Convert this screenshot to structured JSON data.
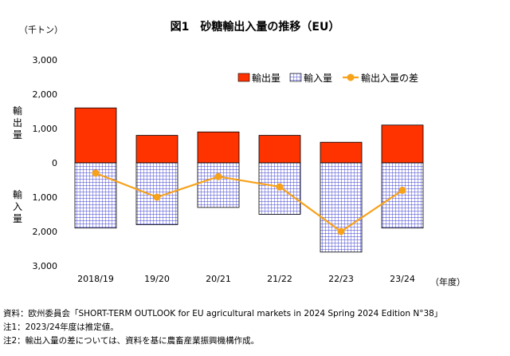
{
  "chart_data": {
    "type": "bar",
    "title": "図1　砂糖輸出入量の推移（EU）",
    "unit_label": "（千トン）",
    "x_unit_label": "（年度）",
    "categories": [
      "2018/19",
      "19/20",
      "20/21",
      "21/22",
      "22/23",
      "23/24"
    ],
    "y_ticks": [
      "3,000",
      "2,000",
      "1,000",
      "0",
      "1,000",
      "2,000",
      "3,000"
    ],
    "ylim": [
      -3000,
      3000
    ],
    "y_axis_upper_label": "輸出量",
    "y_axis_lower_label": "輸入量",
    "series": [
      {
        "name": "輸出量",
        "kind": "bar",
        "color": "#ff3300",
        "values": [
          1600,
          800,
          900,
          800,
          600,
          1100
        ]
      },
      {
        "name": "輸入量",
        "kind": "bar",
        "pattern": "grid",
        "color": "#3333cc",
        "values": [
          -1900,
          -1800,
          -1300,
          -1500,
          -2600,
          -1900
        ]
      },
      {
        "name": "輸出入量の差",
        "kind": "line",
        "color": "#f7a21b",
        "values": [
          -300,
          -1000,
          -400,
          -700,
          -2000,
          -800
        ]
      }
    ],
    "grid": false,
    "legend_position": "top-right"
  },
  "notes": [
    "資料：欧州委員会「SHORT-TERM OUTLOOK for EU agricultural markets in 2024 Spring 2024 Edition N°38」",
    "注1：2023/24年度は推定値。",
    "注2：輸出入量の差については、資料を基に農畜産業振興機構作成。"
  ]
}
